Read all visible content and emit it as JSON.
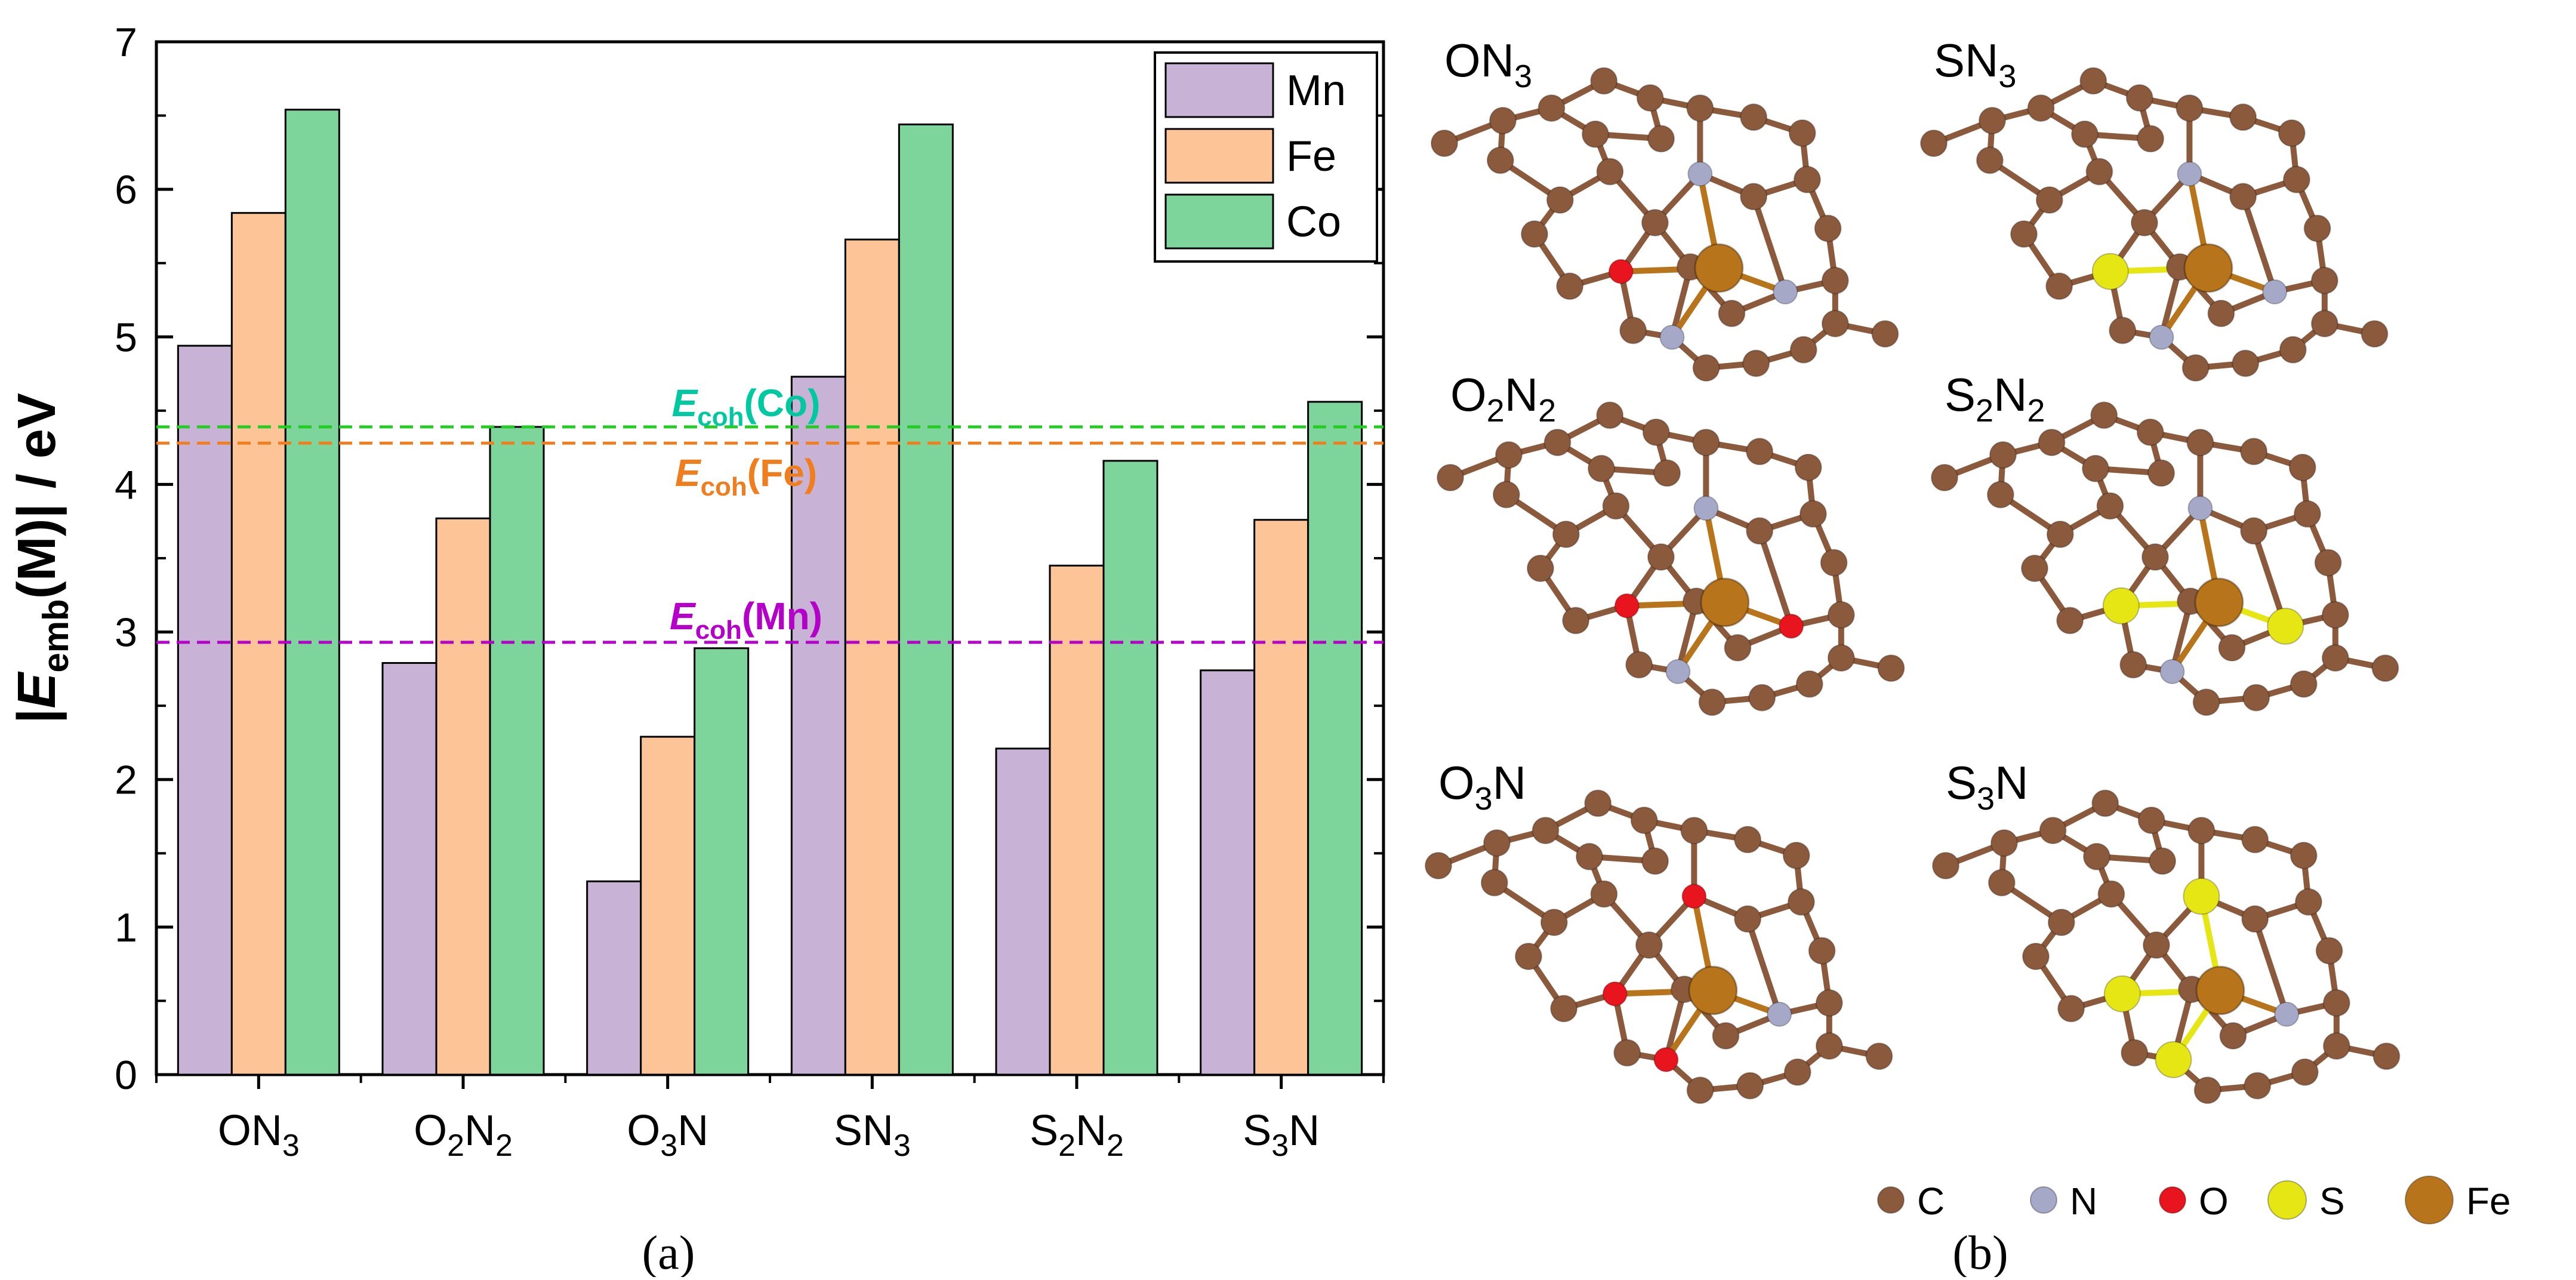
{
  "panel_a_label": "(a)",
  "panel_b_label": "(b)",
  "chart_data": {
    "type": "bar",
    "categories": [
      "ON3",
      "O2N2",
      "O3N",
      "SN3",
      "S2N2",
      "S3N"
    ],
    "category_labels": [
      {
        "main": "ON",
        "sub": "3",
        "tail": ""
      },
      {
        "main": "O",
        "sub": "2",
        "tail": "N",
        "sub2": "2"
      },
      {
        "main": "O",
        "sub": "3",
        "tail": "N"
      },
      {
        "main": "SN",
        "sub": "3",
        "tail": ""
      },
      {
        "main": "S",
        "sub": "2",
        "tail": "N",
        "sub2": "2"
      },
      {
        "main": "S",
        "sub": "3",
        "tail": "N"
      }
    ],
    "series": [
      {
        "name": "Mn",
        "color": "#c8b3d7",
        "values": [
          4.94,
          2.79,
          1.31,
          4.73,
          2.21,
          2.74
        ]
      },
      {
        "name": "Fe",
        "color": "#fdc597",
        "values": [
          5.84,
          3.77,
          2.29,
          5.66,
          3.45,
          3.76
        ]
      },
      {
        "name": "Co",
        "color": "#7dd59c",
        "values": [
          6.54,
          4.39,
          2.89,
          6.44,
          4.16,
          4.56
        ]
      }
    ],
    "ylim": [
      0,
      7
    ],
    "yticks": [
      0,
      1,
      2,
      3,
      4,
      5,
      6,
      7
    ],
    "ylabel": {
      "pre": "|",
      "E": "E",
      "sub": "emb",
      "post": "(M)| / eV"
    },
    "reference_lines": [
      {
        "label_E": "E",
        "label_sub": "coh",
        "label_tail": "(Co)",
        "value": 4.39,
        "color": "#22cc22",
        "text_color": "#00c8a0"
      },
      {
        "label_E": "E",
        "label_sub": "coh",
        "label_tail": "(Fe)",
        "value": 4.28,
        "color": "#f07e1e",
        "text_color": "#f07e1e"
      },
      {
        "label_E": "E",
        "label_sub": "coh",
        "label_tail": "(Mn)",
        "value": 2.93,
        "color": "#b400c8",
        "text_color": "#b400c8"
      }
    ],
    "legend_position": "top-right"
  },
  "structures": [
    {
      "id": "ON3",
      "label_main": "ON",
      "label_sub": "3",
      "label_tail": "",
      "label_sub2": ""
    },
    {
      "id": "SN3",
      "label_main": "SN",
      "label_sub": "3",
      "label_tail": "",
      "label_sub2": ""
    },
    {
      "id": "O2N2",
      "label_main": "O",
      "label_sub": "2",
      "label_tail": "N",
      "label_sub2": "2"
    },
    {
      "id": "S2N2",
      "label_main": "S",
      "label_sub": "2",
      "label_tail": "N",
      "label_sub2": "2"
    },
    {
      "id": "O3N",
      "label_main": "O",
      "label_sub": "3",
      "label_tail": "N",
      "label_sub2": ""
    },
    {
      "id": "S3N",
      "label_main": "S",
      "label_sub": "3",
      "label_tail": "N",
      "label_sub2": ""
    }
  ],
  "atom_legend": [
    {
      "label": "C",
      "color": "#8b5a3c"
    },
    {
      "label": "N",
      "color": "#a6a8c8"
    },
    {
      "label": "O",
      "color": "#e8141e"
    },
    {
      "label": "S",
      "color": "#e6e614"
    },
    {
      "label": "Fe",
      "color": "#b8741a"
    }
  ]
}
